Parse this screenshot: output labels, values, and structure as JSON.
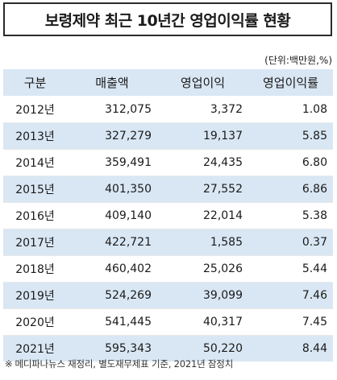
{
  "title": "보령제약 최근 10년간 영업이익률 현황",
  "unit_note": "(단위:백만원,%)",
  "table": {
    "headers": [
      "구분",
      "매출액",
      "영업이익",
      "영업이익률"
    ],
    "rows": [
      {
        "year": "2012년",
        "sales": "312,075",
        "op_income": "3,372",
        "op_margin": "1.08"
      },
      {
        "year": "2013년",
        "sales": "327,279",
        "op_income": "19,137",
        "op_margin": "5.85"
      },
      {
        "year": "2014년",
        "sales": "359,491",
        "op_income": "24,435",
        "op_margin": "6.80"
      },
      {
        "year": "2015년",
        "sales": "401,350",
        "op_income": "27,552",
        "op_margin": "6.86"
      },
      {
        "year": "2016년",
        "sales": "409,140",
        "op_income": "22,014",
        "op_margin": "5.38"
      },
      {
        "year": "2017년",
        "sales": "422,721",
        "op_income": "1,585",
        "op_margin": "0.37"
      },
      {
        "year": "2018년",
        "sales": "460,402",
        "op_income": "25,026",
        "op_margin": "5.44"
      },
      {
        "year": "2019년",
        "sales": "524,269",
        "op_income": "39,099",
        "op_margin": "7.46"
      },
      {
        "year": "2020년",
        "sales": "541,445",
        "op_income": "40,317",
        "op_margin": "7.45"
      },
      {
        "year": "2021년",
        "sales": "595,343",
        "op_income": "50,220",
        "op_margin": "8.44"
      }
    ]
  },
  "footnote": {
    "mark": "※",
    "text": "메디파나뉴스 재정리, 별도재무제표 기준, 2021년 잠정치"
  },
  "colors": {
    "header_bg": "#d9e7f4",
    "band_bg": "#d9e7f4",
    "border": "#2b2b2b"
  }
}
